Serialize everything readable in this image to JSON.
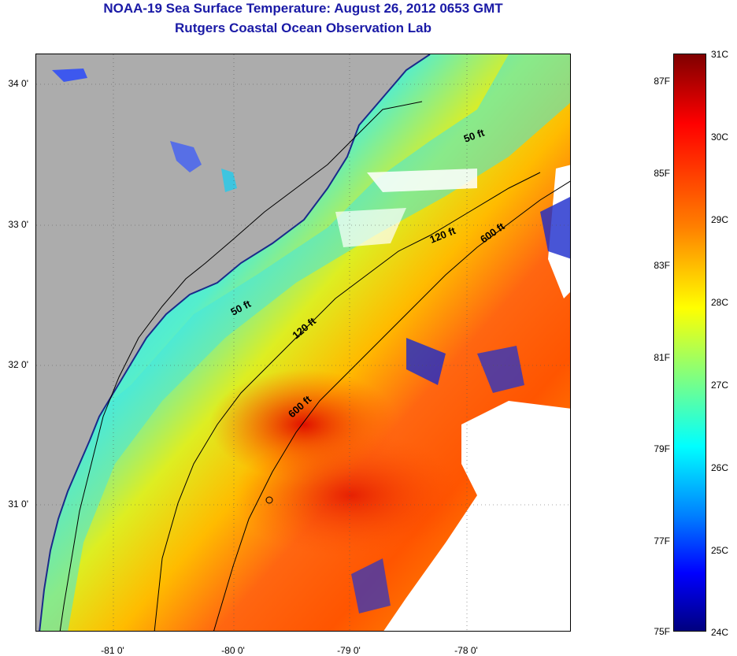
{
  "title_line1": "NOAA-19 Sea Surface Temperature:  August 26, 2012 0653 GMT",
  "title_line2": "Rutgers Coastal Ocean Observation Lab",
  "map": {
    "lat_labels": [
      "34 0'",
      "33 0'",
      "32 0'",
      "31 0'"
    ],
    "lon_labels": [
      "-81 0'",
      "-80 0'",
      "-79 0'",
      "-78 0'"
    ],
    "isobath_labels": [
      {
        "id": "50ft-north",
        "text": "50 ft"
      },
      {
        "id": "120ft-north",
        "text": "120 ft"
      },
      {
        "id": "600ft-north",
        "text": "600 ft"
      },
      {
        "id": "50ft-south",
        "text": "50 ft"
      },
      {
        "id": "120ft-south",
        "text": "120 ft"
      },
      {
        "id": "600ft-south",
        "text": "600 ft"
      }
    ],
    "colors": {
      "land": "#acacac",
      "cloud": "#ffffff",
      "warmest": "#7f0000",
      "coolest": "#00007f"
    }
  },
  "colorbar": {
    "celsius_labels": [
      "31C",
      "30C",
      "29C",
      "28C",
      "27C",
      "26C",
      "25C",
      "24C"
    ],
    "fahrenheit_labels": [
      "87F",
      "85F",
      "83F",
      "81F",
      "79F",
      "77F",
      "75F"
    ],
    "colormap": "jet",
    "range_c": [
      24,
      31
    ]
  }
}
